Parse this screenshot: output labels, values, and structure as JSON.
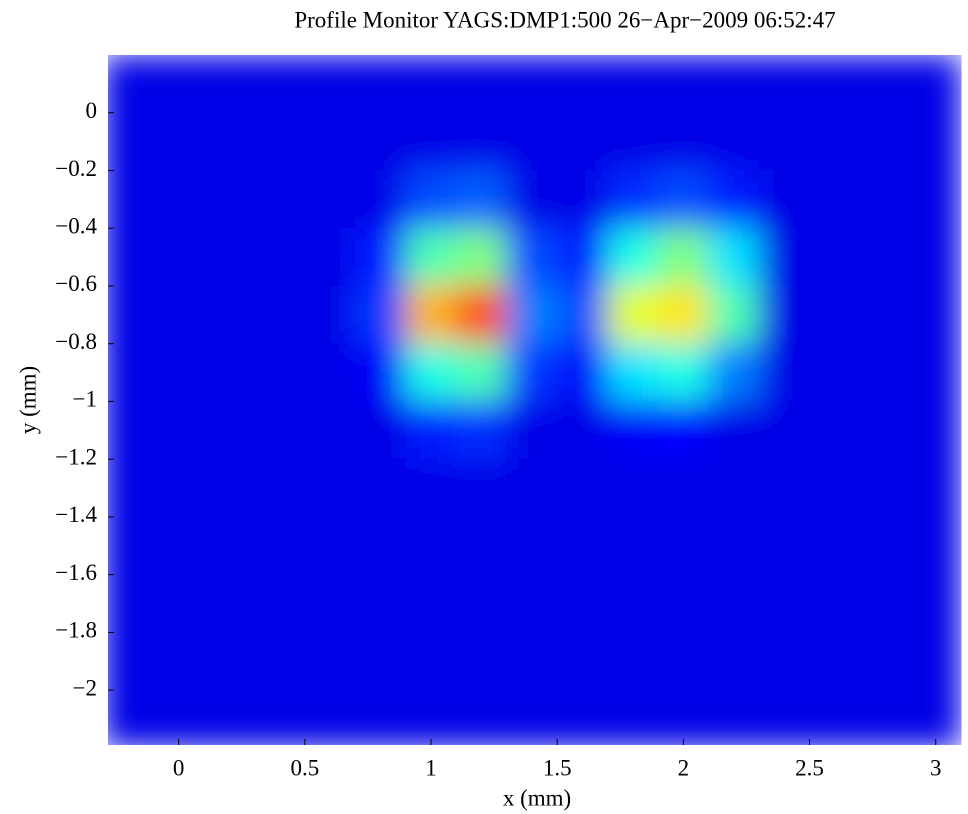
{
  "chart_data": {
    "type": "heatmap",
    "title": "Profile Monitor YAGS:DMP1:500 26−Apr−2009 06:52:47",
    "x_label": "x  (mm)",
    "y_label": "y  (mm)",
    "xlim": [
      -0.28,
      3.12
    ],
    "ylim": [
      -2.19,
      0.2
    ],
    "xticks": [
      0,
      0.5,
      1,
      1.5,
      2,
      2.5,
      3
    ],
    "yticks": [
      0,
      {
        "value": -0.2,
        "label": "−0.2"
      },
      {
        "value": -0.4,
        "label": "−0.4"
      },
      {
        "value": -0.6,
        "label": "−0.6"
      },
      {
        "value": -0.8,
        "label": "−0.8"
      },
      {
        "value": -1,
        "label": "−1"
      },
      {
        "value": -1.2,
        "label": "−1.2"
      },
      {
        "value": -1.4,
        "label": "−1.4"
      },
      {
        "value": -1.6,
        "label": "−1.6"
      },
      {
        "value": -1.8,
        "label": "−1.8"
      },
      {
        "value": -2,
        "label": "−2"
      }
    ],
    "colormap": "jet",
    "clim": [
      0,
      1
    ],
    "x": [
      -0.2,
      0,
      0.2,
      0.4,
      0.6,
      0.8,
      1.0,
      1.2,
      1.4,
      1.6,
      1.8,
      2.0,
      2.2,
      2.4,
      2.6,
      2.8,
      3.0
    ],
    "y": [
      0.1,
      -0.1,
      -0.3,
      -0.5,
      -0.7,
      -0.9,
      -1.1,
      -1.3,
      -1.5,
      -1.7,
      -1.9,
      -2.1
    ],
    "z": [
      [
        0.1,
        0.1,
        0.1,
        0.1,
        0.1,
        0.1,
        0.1,
        0.1,
        0.1,
        0.1,
        0.1,
        0.1,
        0.1,
        0.1,
        0.1,
        0.1,
        0.1
      ],
      [
        0.1,
        0.1,
        0.1,
        0.1,
        0.1,
        0.1,
        0.1,
        0.1,
        0.1,
        0.1,
        0.1,
        0.1,
        0.1,
        0.1,
        0.1,
        0.1,
        0.1
      ],
      [
        0.1,
        0.1,
        0.1,
        0.1,
        0.1,
        0.1,
        0.2,
        0.22,
        0.1,
        0.1,
        0.17,
        0.2,
        0.15,
        0.1,
        0.1,
        0.1,
        0.1
      ],
      [
        0.1,
        0.1,
        0.1,
        0.1,
        0.1,
        0.15,
        0.45,
        0.5,
        0.2,
        0.15,
        0.4,
        0.5,
        0.35,
        0.1,
        0.1,
        0.1,
        0.1
      ],
      [
        0.1,
        0.1,
        0.1,
        0.1,
        0.1,
        0.18,
        0.7,
        0.8,
        0.25,
        0.2,
        0.6,
        0.65,
        0.45,
        0.1,
        0.1,
        0.1,
        0.1
      ],
      [
        0.1,
        0.1,
        0.1,
        0.1,
        0.1,
        0.12,
        0.4,
        0.45,
        0.18,
        0.12,
        0.35,
        0.4,
        0.25,
        0.1,
        0.1,
        0.1,
        0.1
      ],
      [
        0.1,
        0.1,
        0.1,
        0.1,
        0.1,
        0.1,
        0.15,
        0.17,
        0.1,
        0.1,
        0.12,
        0.13,
        0.1,
        0.1,
        0.1,
        0.1,
        0.1
      ],
      [
        0.1,
        0.1,
        0.1,
        0.1,
        0.1,
        0.1,
        0.1,
        0.1,
        0.1,
        0.1,
        0.1,
        0.1,
        0.1,
        0.1,
        0.1,
        0.1,
        0.1
      ],
      [
        0.1,
        0.1,
        0.1,
        0.1,
        0.1,
        0.1,
        0.1,
        0.1,
        0.1,
        0.1,
        0.1,
        0.1,
        0.1,
        0.1,
        0.1,
        0.1,
        0.1
      ],
      [
        0.1,
        0.1,
        0.1,
        0.1,
        0.1,
        0.1,
        0.1,
        0.1,
        0.1,
        0.1,
        0.1,
        0.1,
        0.1,
        0.1,
        0.1,
        0.1,
        0.1
      ],
      [
        0.1,
        0.1,
        0.1,
        0.1,
        0.1,
        0.1,
        0.1,
        0.1,
        0.1,
        0.1,
        0.1,
        0.1,
        0.1,
        0.1,
        0.1,
        0.1,
        0.1
      ],
      [
        0.1,
        0.1,
        0.1,
        0.1,
        0.1,
        0.1,
        0.1,
        0.1,
        0.1,
        0.1,
        0.1,
        0.1,
        0.1,
        0.1,
        0.1,
        0.1,
        0.1
      ]
    ]
  }
}
